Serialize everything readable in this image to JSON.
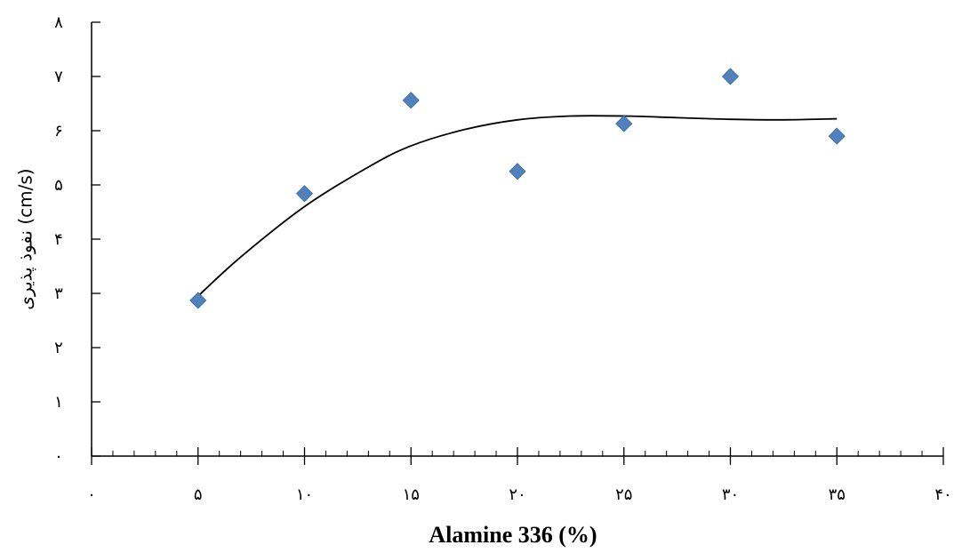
{
  "chart_data": {
    "type": "scatter",
    "xlabel": "Alamine 336 (%)",
    "ylabel": "نفوذ پذیری (cm/s)",
    "xlim": [
      0,
      40
    ],
    "ylim": [
      0,
      8
    ],
    "x_ticks": [
      {
        "value": 0,
        "label": "۰"
      },
      {
        "value": 5,
        "label": "۵"
      },
      {
        "value": 10,
        "label": "۱۰"
      },
      {
        "value": 15,
        "label": "۱۵"
      },
      {
        "value": 20,
        "label": "۲۰"
      },
      {
        "value": 25,
        "label": "۲۵"
      },
      {
        "value": 30,
        "label": "۳۰"
      },
      {
        "value": 35,
        "label": "۳۵"
      },
      {
        "value": 40,
        "label": "۴۰"
      }
    ],
    "y_ticks": [
      {
        "value": 0,
        "label": "۰"
      },
      {
        "value": 1,
        "label": "۱"
      },
      {
        "value": 2,
        "label": "۲"
      },
      {
        "value": 3,
        "label": "۳"
      },
      {
        "value": 4,
        "label": "۴"
      },
      {
        "value": 5,
        "label": "۵"
      },
      {
        "value": 6,
        "label": "۶"
      },
      {
        "value": 7,
        "label": "۷"
      },
      {
        "value": 8,
        "label": "۸"
      }
    ],
    "x_minor_step": 1,
    "grid": false,
    "legend": "none",
    "series": [
      {
        "marker": "diamond",
        "color": "#4F81BD",
        "points": [
          {
            "x": 5,
            "y": 2.87
          },
          {
            "x": 10,
            "y": 4.84
          },
          {
            "x": 15,
            "y": 6.56
          },
          {
            "x": 20,
            "y": 5.25
          },
          {
            "x": 25,
            "y": 6.13
          },
          {
            "x": 30,
            "y": 7.0
          },
          {
            "x": 35,
            "y": 5.9
          }
        ]
      }
    ],
    "trendline": {
      "color": "#000000",
      "points": [
        {
          "x": 5,
          "y": 2.95
        },
        {
          "x": 7,
          "y": 3.67
        },
        {
          "x": 10,
          "y": 4.6
        },
        {
          "x": 13,
          "y": 5.33
        },
        {
          "x": 15,
          "y": 5.72
        },
        {
          "x": 17.5,
          "y": 6.02
        },
        {
          "x": 20,
          "y": 6.2
        },
        {
          "x": 22.5,
          "y": 6.27
        },
        {
          "x": 25,
          "y": 6.27
        },
        {
          "x": 27.5,
          "y": 6.24
        },
        {
          "x": 30,
          "y": 6.21
        },
        {
          "x": 32.5,
          "y": 6.2
        },
        {
          "x": 35,
          "y": 6.22
        }
      ]
    }
  }
}
